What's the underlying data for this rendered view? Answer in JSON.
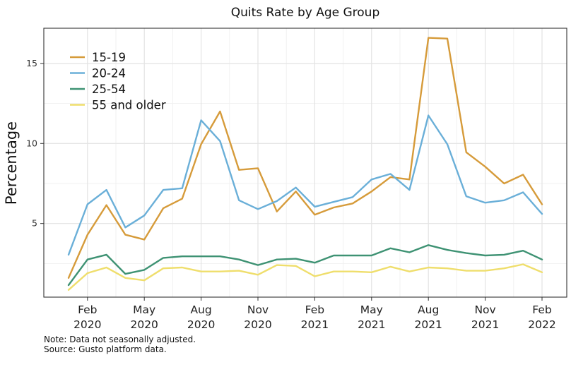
{
  "chart_data": {
    "type": "line",
    "title": "Quits Rate by Age Group",
    "xlabel": "",
    "ylabel": "Percentage",
    "x": [
      "2020-01",
      "2020-02",
      "2020-03",
      "2020-04",
      "2020-05",
      "2020-06",
      "2020-07",
      "2020-08",
      "2020-09",
      "2020-10",
      "2020-11",
      "2020-12",
      "2021-01",
      "2021-02",
      "2021-03",
      "2021-04",
      "2021-05",
      "2021-06",
      "2021-07",
      "2021-08",
      "2021-09",
      "2021-10",
      "2021-11",
      "2021-12",
      "2022-01",
      "2022-02"
    ],
    "x_ticks": [
      {
        "x": "2020-02",
        "line1": "Feb",
        "line2": "2020"
      },
      {
        "x": "2020-05",
        "line1": "May",
        "line2": "2020"
      },
      {
        "x": "2020-08",
        "line1": "Aug",
        "line2": "2020"
      },
      {
        "x": "2020-11",
        "line1": "Nov",
        "line2": "2020"
      },
      {
        "x": "2021-02",
        "line1": "Feb",
        "line2": "2021"
      },
      {
        "x": "2021-05",
        "line1": "May",
        "line2": "2021"
      },
      {
        "x": "2021-08",
        "line1": "Aug",
        "line2": "2021"
      },
      {
        "x": "2021-11",
        "line1": "Nov",
        "line2": "2021"
      },
      {
        "x": "2022-02",
        "line1": "Feb",
        "line2": "2022"
      }
    ],
    "y_ticks": [
      5,
      10,
      15
    ],
    "ylim": [
      0.4,
      17.2
    ],
    "grid": true,
    "legend_position": "top-left",
    "series": [
      {
        "name": "15-19",
        "color": "#d69b3a",
        "values": [
          1.6,
          4.3,
          6.15,
          4.3,
          4.0,
          5.95,
          6.55,
          9.95,
          12.0,
          8.35,
          8.45,
          5.75,
          7.0,
          5.55,
          6.0,
          6.25,
          7.0,
          7.9,
          7.75,
          16.6,
          16.55,
          9.45,
          8.55,
          7.5,
          8.05,
          6.2
        ]
      },
      {
        "name": "20-24",
        "color": "#6aafd8",
        "values": [
          3.05,
          6.2,
          7.1,
          4.75,
          5.5,
          7.1,
          7.2,
          11.45,
          10.15,
          6.45,
          5.9,
          6.4,
          7.25,
          6.05,
          6.35,
          6.65,
          7.75,
          8.1,
          7.1,
          11.75,
          9.95,
          6.7,
          6.3,
          6.45,
          6.95,
          5.6
        ]
      },
      {
        "name": "25-54",
        "color": "#3e9273",
        "values": [
          1.15,
          2.75,
          3.05,
          1.85,
          2.1,
          2.85,
          2.95,
          2.95,
          2.95,
          2.75,
          2.4,
          2.75,
          2.8,
          2.55,
          3.0,
          3.0,
          3.0,
          3.45,
          3.2,
          3.65,
          3.35,
          3.15,
          3.0,
          3.05,
          3.3,
          2.75
        ]
      },
      {
        "name": "55 and older",
        "color": "#efde6c",
        "values": [
          0.85,
          1.9,
          2.25,
          1.6,
          1.45,
          2.2,
          2.25,
          2.0,
          2.0,
          2.05,
          1.8,
          2.4,
          2.35,
          1.7,
          2.0,
          2.0,
          1.95,
          2.3,
          2.0,
          2.25,
          2.2,
          2.05,
          2.05,
          2.2,
          2.45,
          1.95
        ]
      }
    ]
  },
  "notes": {
    "line1": "Note: Data not seasonally adjusted.",
    "line2": "Source: Gusto platform data."
  }
}
